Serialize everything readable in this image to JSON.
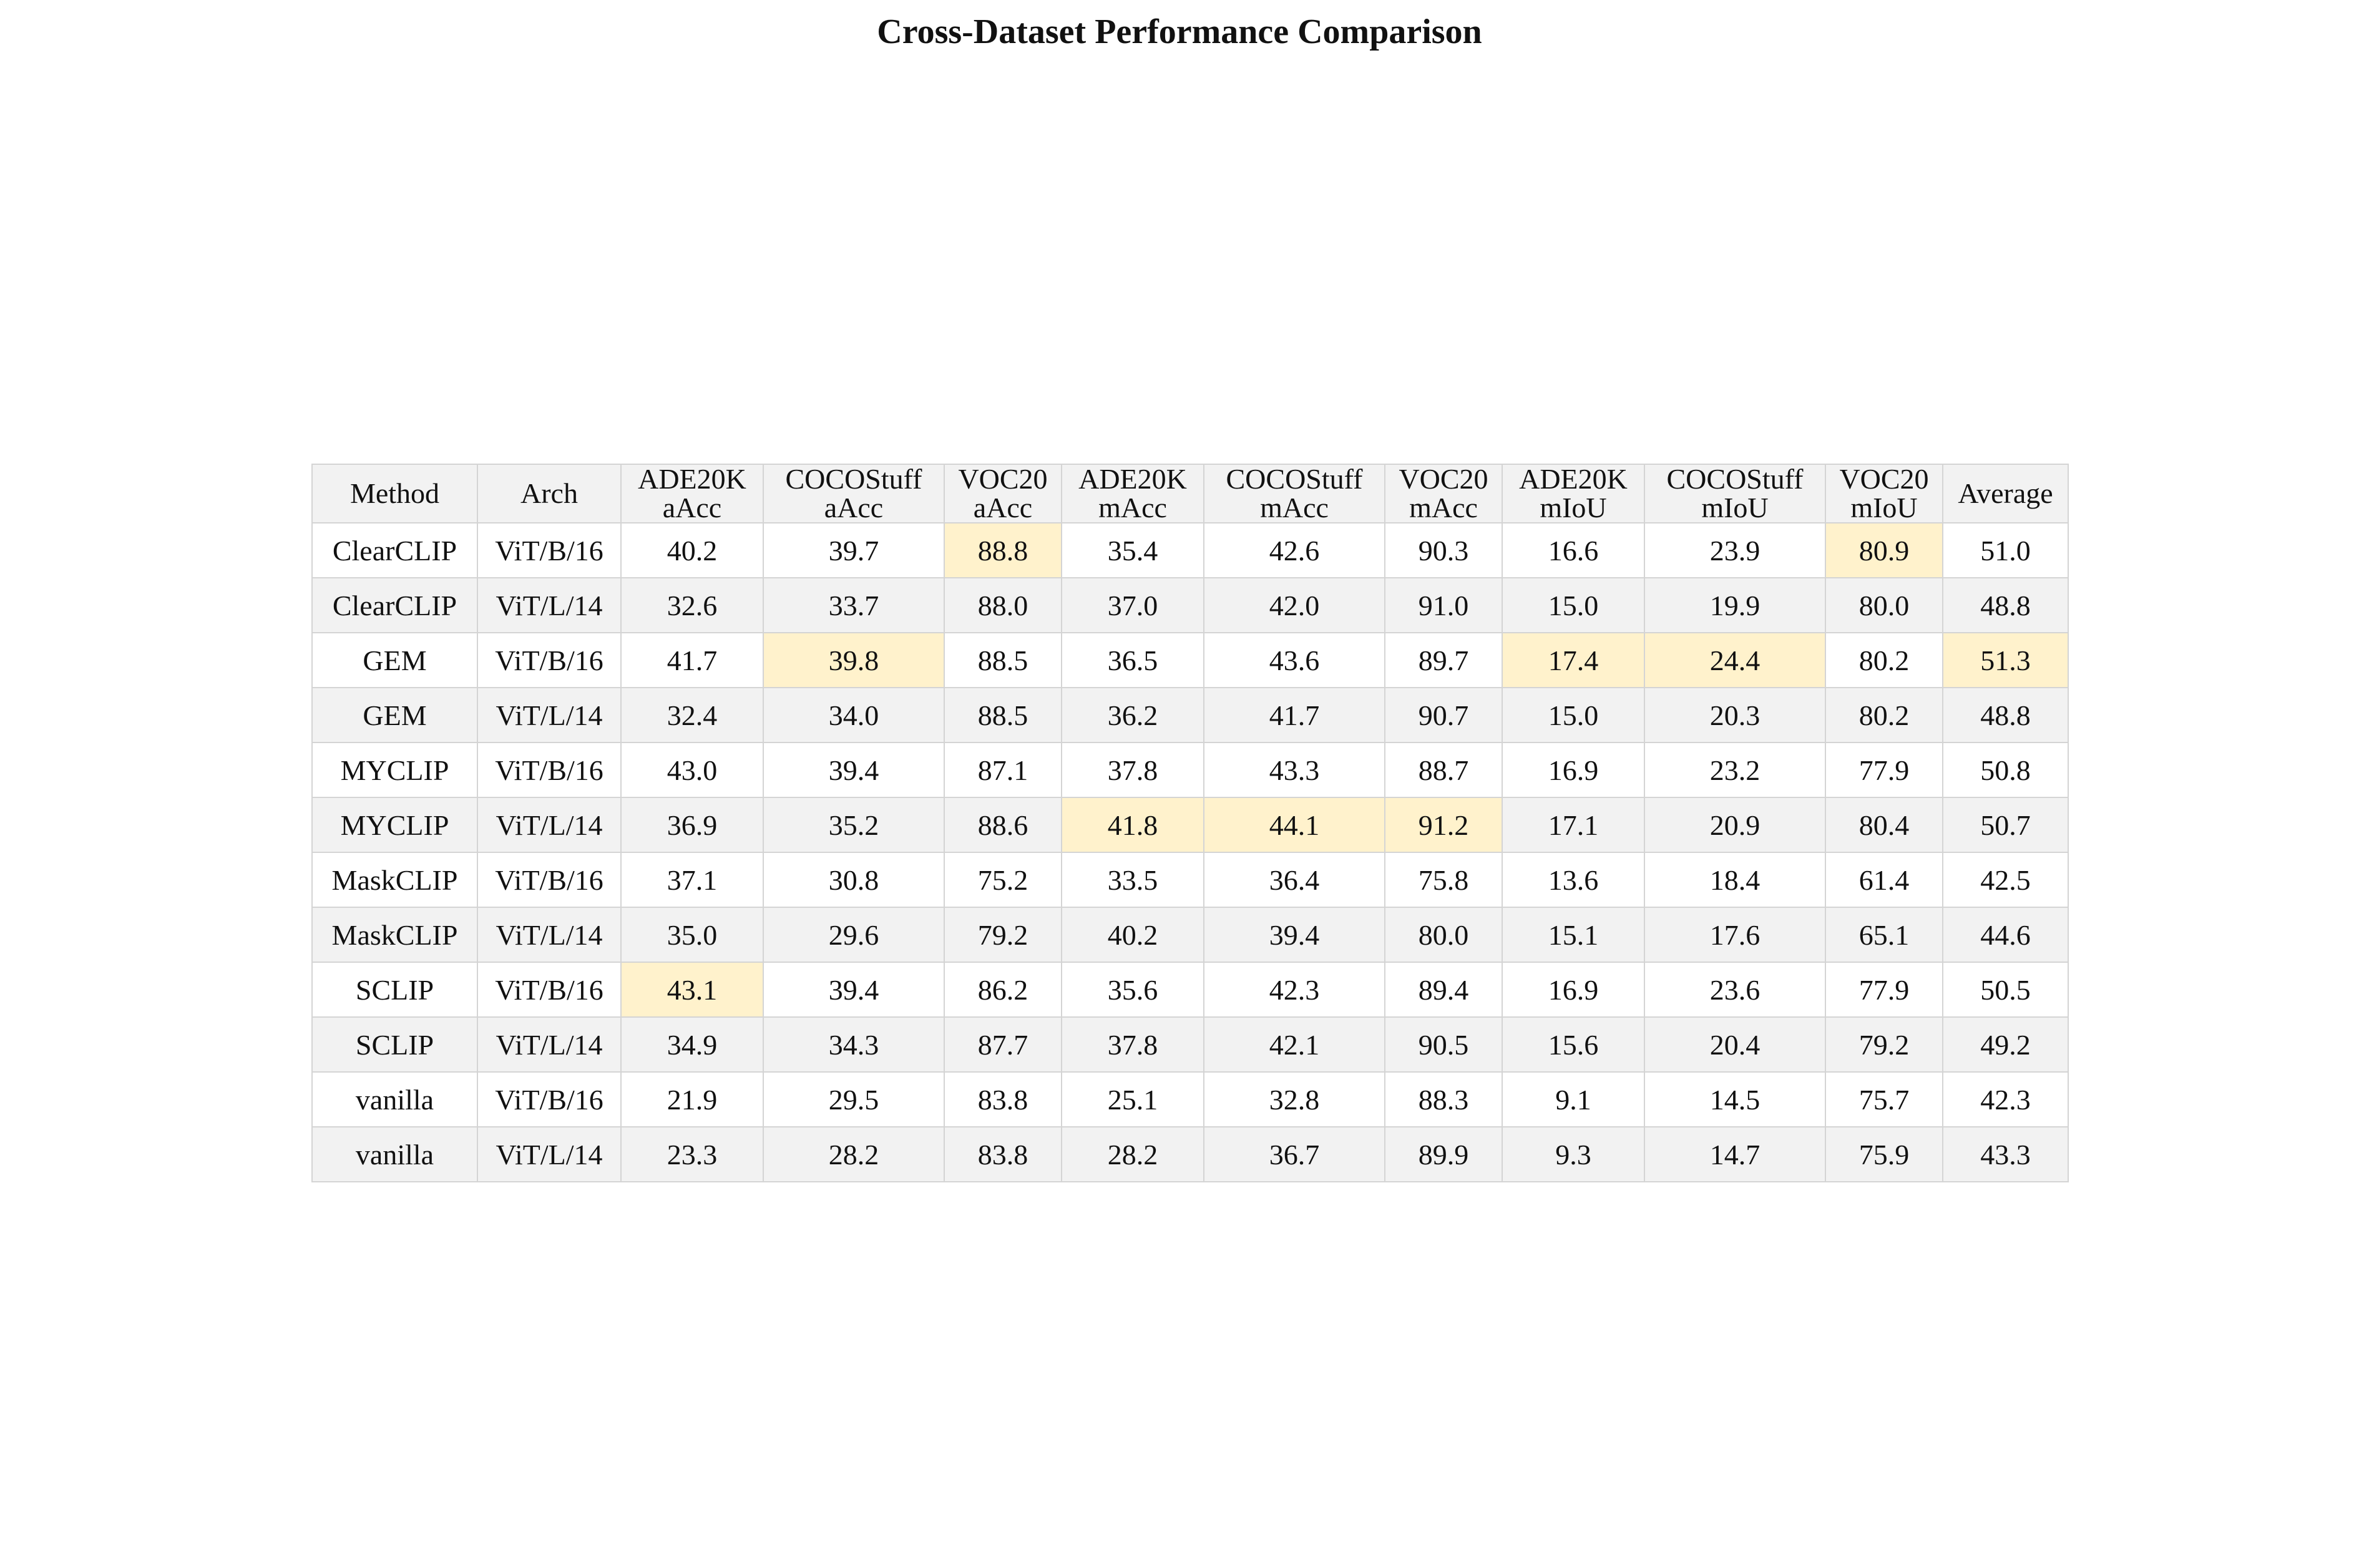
{
  "chart_data": {
    "type": "table",
    "title": "Cross-Dataset Performance Comparison",
    "columns": [
      {
        "key": "method",
        "lines": [
          "Method"
        ]
      },
      {
        "key": "arch",
        "lines": [
          "Arch"
        ]
      },
      {
        "key": "ade_aacc",
        "lines": [
          "ADE20K",
          "aAcc"
        ]
      },
      {
        "key": "coco_aacc",
        "lines": [
          "COCOStuff",
          "aAcc"
        ]
      },
      {
        "key": "voc_aacc",
        "lines": [
          "VOC20",
          "aAcc"
        ]
      },
      {
        "key": "ade_macc",
        "lines": [
          "ADE20K",
          "mAcc"
        ]
      },
      {
        "key": "coco_macc",
        "lines": [
          "COCOStuff",
          "mAcc"
        ]
      },
      {
        "key": "voc_macc",
        "lines": [
          "VOC20",
          "mAcc"
        ]
      },
      {
        "key": "ade_miou",
        "lines": [
          "ADE20K",
          "mIoU"
        ]
      },
      {
        "key": "coco_miou",
        "lines": [
          "COCOStuff",
          "mIoU"
        ]
      },
      {
        "key": "voc_miou",
        "lines": [
          "VOC20",
          "mIoU"
        ]
      },
      {
        "key": "average",
        "lines": [
          "Average"
        ]
      }
    ],
    "rows": [
      {
        "cells": [
          "ClearCLIP",
          "ViT/B/16",
          "40.2",
          "39.7",
          "88.8",
          "35.4",
          "42.6",
          "90.3",
          "16.6",
          "23.9",
          "80.9",
          "51.0"
        ],
        "highlight": [
          4,
          10
        ]
      },
      {
        "cells": [
          "ClearCLIP",
          "ViT/L/14",
          "32.6",
          "33.7",
          "88.0",
          "37.0",
          "42.0",
          "91.0",
          "15.0",
          "19.9",
          "80.0",
          "48.8"
        ],
        "highlight": []
      },
      {
        "cells": [
          "GEM",
          "ViT/B/16",
          "41.7",
          "39.8",
          "88.5",
          "36.5",
          "43.6",
          "89.7",
          "17.4",
          "24.4",
          "80.2",
          "51.3"
        ],
        "highlight": [
          3,
          8,
          9,
          11
        ]
      },
      {
        "cells": [
          "GEM",
          "ViT/L/14",
          "32.4",
          "34.0",
          "88.5",
          "36.2",
          "41.7",
          "90.7",
          "15.0",
          "20.3",
          "80.2",
          "48.8"
        ],
        "highlight": []
      },
      {
        "cells": [
          "MYCLIP",
          "ViT/B/16",
          "43.0",
          "39.4",
          "87.1",
          "37.8",
          "43.3",
          "88.7",
          "16.9",
          "23.2",
          "77.9",
          "50.8"
        ],
        "highlight": []
      },
      {
        "cells": [
          "MYCLIP",
          "ViT/L/14",
          "36.9",
          "35.2",
          "88.6",
          "41.8",
          "44.1",
          "91.2",
          "17.1",
          "20.9",
          "80.4",
          "50.7"
        ],
        "highlight": [
          5,
          6,
          7
        ]
      },
      {
        "cells": [
          "MaskCLIP",
          "ViT/B/16",
          "37.1",
          "30.8",
          "75.2",
          "33.5",
          "36.4",
          "75.8",
          "13.6",
          "18.4",
          "61.4",
          "42.5"
        ],
        "highlight": []
      },
      {
        "cells": [
          "MaskCLIP",
          "ViT/L/14",
          "35.0",
          "29.6",
          "79.2",
          "40.2",
          "39.4",
          "80.0",
          "15.1",
          "17.6",
          "65.1",
          "44.6"
        ],
        "highlight": []
      },
      {
        "cells": [
          "SCLIP",
          "ViT/B/16",
          "43.1",
          "39.4",
          "86.2",
          "35.6",
          "42.3",
          "89.4",
          "16.9",
          "23.6",
          "77.9",
          "50.5"
        ],
        "highlight": [
          2
        ]
      },
      {
        "cells": [
          "SCLIP",
          "ViT/L/14",
          "34.9",
          "34.3",
          "87.7",
          "37.8",
          "42.1",
          "90.5",
          "15.6",
          "20.4",
          "79.2",
          "49.2"
        ],
        "highlight": []
      },
      {
        "cells": [
          "vanilla",
          "ViT/B/16",
          "21.9",
          "29.5",
          "83.8",
          "25.1",
          "32.8",
          "88.3",
          "9.1",
          "14.5",
          "75.7",
          "42.3"
        ],
        "highlight": []
      },
      {
        "cells": [
          "vanilla",
          "ViT/L/14",
          "23.3",
          "28.2",
          "83.8",
          "28.2",
          "36.7",
          "89.9",
          "9.3",
          "14.7",
          "75.9",
          "43.3"
        ],
        "highlight": []
      }
    ],
    "colors": {
      "header_bg": "#f2f2f2",
      "row_alt_bg": "#f2f2f2",
      "row_bg": "#ffffff",
      "highlight_bg": "#fff2cc",
      "border": "#d4d4d4"
    }
  }
}
